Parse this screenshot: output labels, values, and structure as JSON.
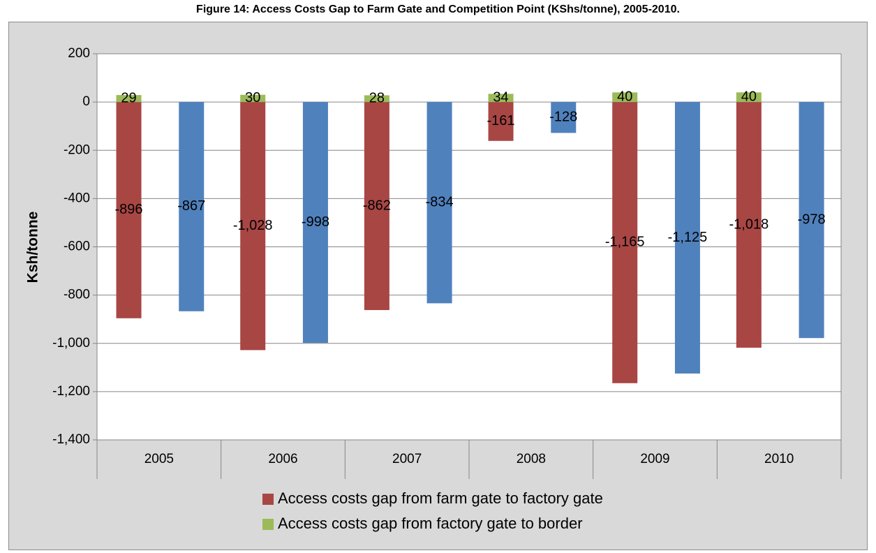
{
  "figure_title": "Figure 14: Access Costs Gap to Farm Gate and Competition Point (KShs/tonne), 2005-2010.",
  "chart_data": {
    "type": "bar",
    "categories": [
      "2005",
      "2006",
      "2007",
      "2008",
      "2009",
      "2010"
    ],
    "ylabel": "Ksh/tonne",
    "xlabel": "",
    "ylim": [
      -1400,
      200
    ],
    "yticks": [
      200,
      0,
      -200,
      -400,
      -600,
      -800,
      -1000,
      -1200,
      -1400
    ],
    "ytick_labels": [
      "200",
      "0",
      "-200",
      "-400",
      "-600",
      "-800",
      "-1,000",
      "-1,200",
      "-1,400"
    ],
    "grid": true,
    "legend_position": "bottom",
    "stacked_bar": {
      "segments": [
        {
          "name": "Access costs gap from farm gate to factory gate",
          "color": "#a84644",
          "values": [
            -896,
            -1028,
            -862,
            -161,
            -1165,
            -1018
          ],
          "labels": [
            "-896",
            "-1,028",
            "-862",
            "-161",
            "-1,165",
            "-1,018"
          ]
        },
        {
          "name": "Access costs gap from factory gate to border",
          "color": "#9bbb59",
          "values": [
            29,
            30,
            28,
            34,
            40,
            40
          ],
          "labels": [
            "29",
            "30",
            "28",
            "34",
            "40",
            "40"
          ]
        }
      ]
    },
    "single_bar": {
      "color": "#4f81bd",
      "values": [
        -867,
        -998,
        -834,
        -128,
        -1125,
        -978
      ],
      "labels": [
        "-867",
        "-998",
        "-834",
        "-128",
        "-1,125",
        "-978"
      ]
    }
  }
}
